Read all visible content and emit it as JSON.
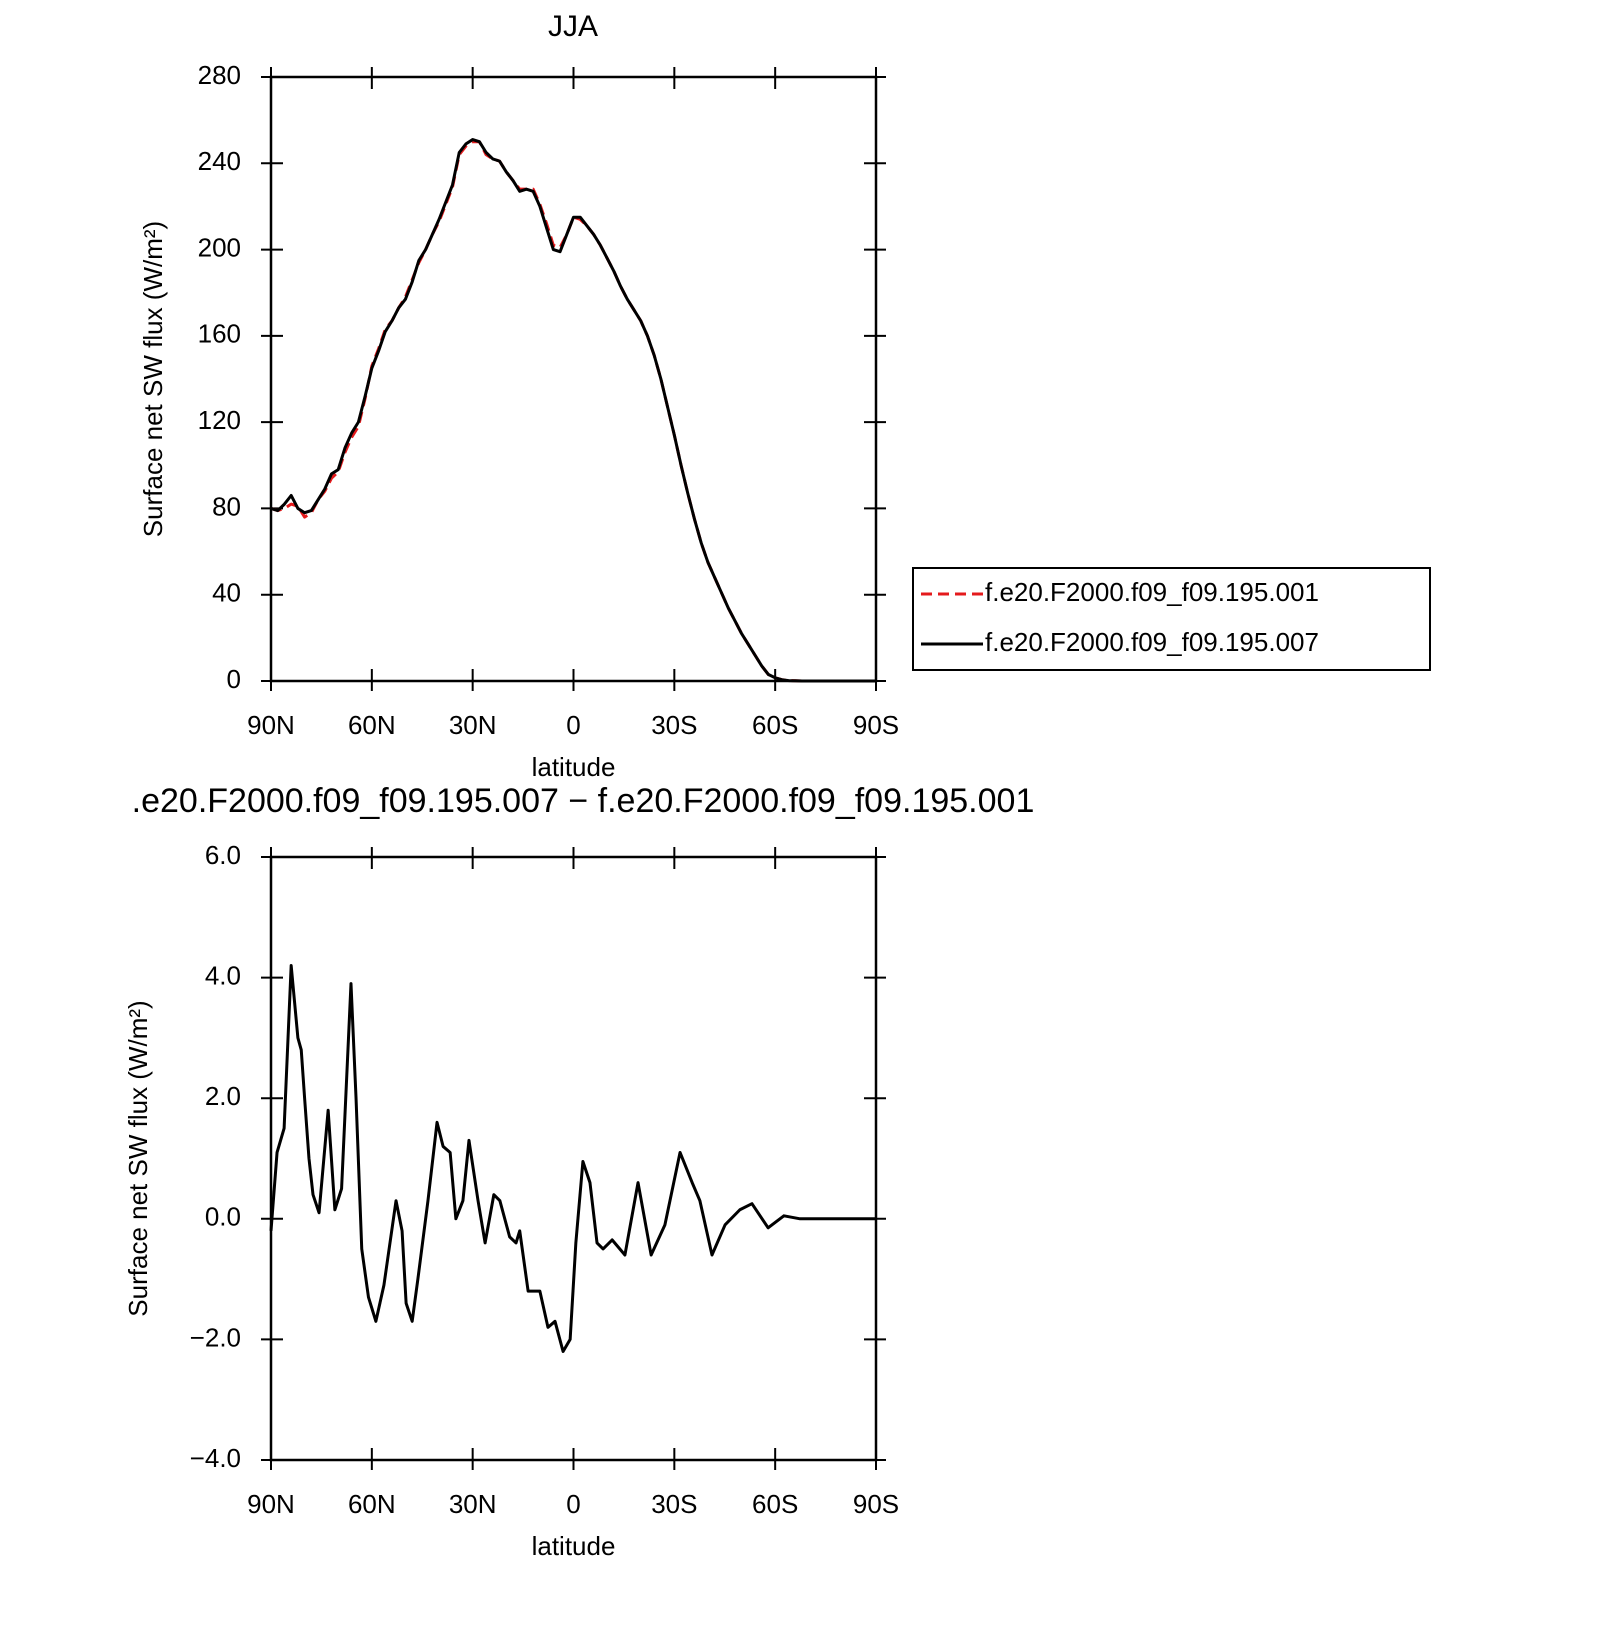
{
  "chart_data": [
    {
      "type": "line",
      "title": "JJA",
      "xlabel": "latitude",
      "ylabel": "Surface net SW flux (W/m²)",
      "x": [
        90,
        88,
        86,
        84,
        82,
        80,
        78,
        76,
        74,
        72,
        70,
        68,
        66,
        64,
        62,
        60,
        58,
        56,
        54,
        52,
        50,
        48,
        46,
        44,
        42,
        40,
        38,
        36,
        34,
        32,
        30,
        28,
        26,
        24,
        22,
        20,
        18,
        16,
        14,
        12,
        10,
        8,
        6,
        4,
        2,
        0,
        -2,
        -4,
        -6,
        -8,
        -10,
        -12,
        -14,
        -16,
        -18,
        -20,
        -22,
        -24,
        -26,
        -28,
        -30,
        -32,
        -34,
        -36,
        -38,
        -40,
        -42,
        -44,
        -46,
        -48,
        -50,
        -52,
        -54,
        -56,
        -58,
        -60,
        -62,
        -64,
        -66,
        -68,
        -70,
        -72,
        -74,
        -76,
        -78,
        -80,
        -82,
        -84,
        -86,
        -88,
        -90
      ],
      "series": [
        {
          "name": "f.e20.F2000.f09_f09.195.001",
          "color": "#e41a1c",
          "dash": true,
          "values": [
            80,
            79,
            80,
            82,
            81,
            76,
            78,
            84,
            88,
            94,
            97,
            106,
            113,
            118,
            131,
            146,
            154,
            163,
            167,
            173,
            178,
            186,
            194,
            200,
            207,
            213,
            221,
            229,
            244,
            248,
            250,
            250,
            244,
            242,
            241,
            236,
            232,
            228,
            228,
            228,
            221,
            212,
            202,
            201,
            207,
            215,
            214,
            211,
            207,
            202,
            196,
            190,
            183,
            177,
            172,
            167,
            160,
            151,
            140,
            127,
            114,
            100,
            87,
            75,
            64,
            55,
            48,
            41,
            34,
            28,
            22,
            17,
            12,
            7,
            3,
            1.5,
            0.6,
            0.2,
            0.1,
            0,
            0,
            0,
            0,
            0,
            0,
            0,
            0,
            0,
            0,
            0,
            0
          ]
        },
        {
          "name": "f.e20.F2000.f09_f09.195.007",
          "color": "#000000",
          "dash": false,
          "values": [
            80,
            79,
            82,
            86,
            80,
            78,
            79,
            84,
            89,
            96,
            98,
            108,
            115,
            120,
            132,
            145,
            153,
            162,
            167,
            173,
            177,
            185,
            195,
            200,
            207,
            214,
            222,
            230,
            245,
            249,
            251,
            250,
            245,
            242,
            241,
            236,
            232,
            227,
            228,
            227,
            220,
            210,
            200,
            199,
            207,
            215,
            215,
            211,
            207,
            202,
            196,
            190,
            183,
            177,
            172,
            167,
            160,
            151,
            140,
            127,
            114,
            100,
            87,
            75,
            64,
            55,
            48,
            41,
            34,
            28,
            22,
            17,
            12,
            7,
            3,
            1.5,
            0.6,
            0.2,
            0.1,
            0,
            0,
            0,
            0,
            0,
            0,
            0,
            0,
            0,
            0,
            0,
            0
          ]
        }
      ],
      "xlim": [
        90,
        -90
      ],
      "xticks": [
        {
          "value": 90,
          "label": "90N"
        },
        {
          "value": 60,
          "label": "60N"
        },
        {
          "value": 30,
          "label": "30N"
        },
        0,
        {
          "value": -30,
          "label": "30S"
        },
        {
          "value": -60,
          "label": "60S"
        },
        {
          "value": -90,
          "label": "90S"
        }
      ],
      "ylim": [
        0,
        280
      ],
      "yticks": [
        0,
        40,
        80,
        120,
        160,
        200,
        240,
        280
      ],
      "legend": "right"
    },
    {
      "type": "line",
      "title": ".e20.F2000.f09_f09.195.007 − f.e20.F2000.f09_f09.195.001",
      "xlabel": "latitude",
      "ylabel": "Surface net SW flux (W/m²)",
      "x": [
        90,
        88.2,
        86.1,
        84,
        82,
        81,
        80,
        78.7,
        77.5,
        75.7,
        73,
        71,
        69,
        66.2,
        64.7,
        63,
        61,
        58.8,
        56.4,
        52.8,
        51,
        49.8,
        48,
        46.3,
        43.3,
        40.6,
        38.8,
        36.7,
        35,
        32.9,
        31.1,
        28.4,
        26.3,
        23.7,
        21.9,
        19,
        17.1,
        16,
        13.5,
        10,
        7.6,
        5.5,
        3.1,
        1,
        -0.7,
        -2.8,
        -4.9,
        -7,
        -8.8,
        -11.5,
        -15.3,
        -19.2,
        -23.1,
        -27.2,
        -31.7,
        -35.3,
        -37.6,
        -41.2,
        -45.1,
        -49.5,
        -53.1,
        -57.9,
        -62.6,
        -67.4,
        -90
      ],
      "color": "#000000",
      "values": [
        -0.2,
        1.1,
        1.5,
        4.2,
        3.0,
        2.8,
        2.0,
        1.0,
        0.4,
        0.1,
        1.8,
        0.15,
        0.5,
        3.9,
        2.0,
        -0.5,
        -1.3,
        -1.7,
        -1.1,
        0.3,
        -0.2,
        -1.4,
        -1.7,
        -1.0,
        0.3,
        1.6,
        1.2,
        1.1,
        0.0,
        0.3,
        1.3,
        0.3,
        -0.4,
        0.4,
        0.3,
        -0.3,
        -0.4,
        -0.2,
        -1.2,
        -1.2,
        -1.8,
        -1.7,
        -2.2,
        -2.0,
        -0.4,
        0.95,
        0.6,
        -0.4,
        -0.5,
        -0.35,
        -0.6,
        0.6,
        -0.6,
        -0.1,
        1.1,
        0.6,
        0.3,
        -0.6,
        -0.1,
        0.15,
        0.25,
        -0.15,
        0.05,
        0,
        0
      ],
      "xlim": [
        90,
        -90
      ],
      "xticks": [
        {
          "value": 90,
          "label": "90N"
        },
        {
          "value": 60,
          "label": "60N"
        },
        {
          "value": 30,
          "label": "30N"
        },
        0,
        {
          "value": -30,
          "label": "30S"
        },
        {
          "value": -60,
          "label": "60S"
        },
        {
          "value": -90,
          "label": "90S"
        }
      ],
      "ylim": [
        -4,
        6
      ],
      "yticks": [
        {
          "value": -4,
          "label": "−4.0"
        },
        {
          "value": -2,
          "label": "−2.0"
        },
        {
          "value": 0,
          "label": "0.0"
        },
        {
          "value": 2,
          "label": "2.0"
        },
        {
          "value": 4,
          "label": "4.0"
        },
        {
          "value": 6,
          "label": "6.0"
        }
      ]
    }
  ]
}
